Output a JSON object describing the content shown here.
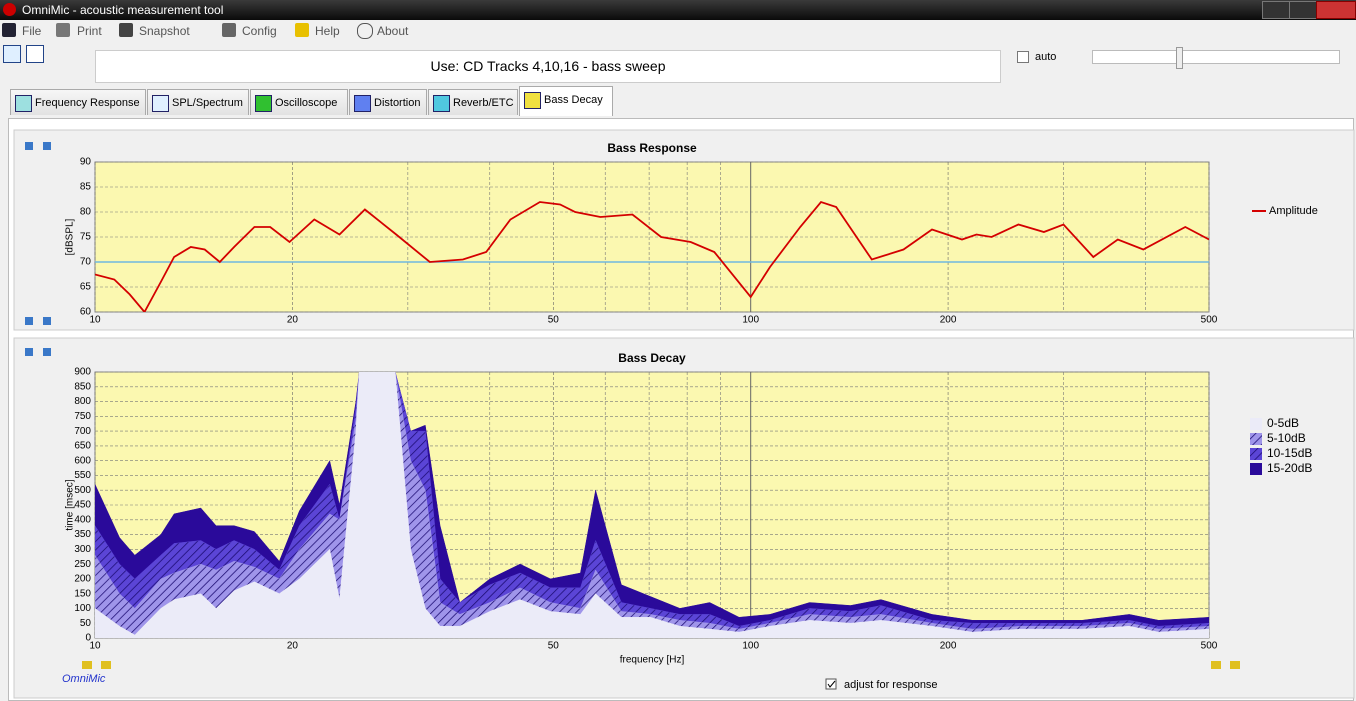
{
  "window": {
    "title": "OmniMic - acoustic measurement tool"
  },
  "menu": [
    "File",
    "Print",
    "Snapshot",
    "Config",
    "Help",
    "About"
  ],
  "toolbar": {
    "message": "Use: CD Tracks 4,10,16 - bass sweep",
    "auto": "auto"
  },
  "tabs": [
    "Frequency Response",
    "SPL/Spectrum",
    "Oscilloscope",
    "Distortion",
    "Reverb/ETC",
    "Bass Decay"
  ],
  "active_tab": 5,
  "footer": {
    "logo": "OmniMic",
    "checkbox": "adjust for response"
  },
  "chart_data": [
    {
      "type": "line",
      "title": "Bass Response",
      "y_label": "[dBSPL]",
      "log_x": true,
      "grid": true,
      "xlim": [
        10,
        500
      ],
      "xticks": [
        10,
        20,
        50,
        100,
        200,
        500
      ],
      "xminor": [
        30,
        40,
        60,
        70,
        80,
        90,
        300,
        400
      ],
      "ylim": [
        60,
        90
      ],
      "yticks": [
        60,
        65,
        70,
        75,
        80,
        85,
        90
      ],
      "reference_line": 70,
      "reference_color": "#6fb7e0",
      "x": [
        10,
        10.7,
        11.3,
        11.9,
        12.6,
        13.2,
        14.0,
        14.7,
        15.5,
        16.3,
        17.5,
        18.5,
        19.8,
        21.6,
        23.6,
        25.8,
        28.8,
        32.4,
        36.4,
        39.5,
        43,
        47.7,
        51.2,
        54,
        59,
        66,
        73,
        81,
        88,
        100,
        107,
        119,
        128,
        135,
        153,
        171,
        189,
        210,
        221,
        233,
        256,
        280,
        300,
        333,
        363,
        397,
        460,
        500
      ],
      "series": [
        {
          "name": "Amplitude",
          "color": "#d40000",
          "values": [
            67.5,
            66.5,
            63.5,
            60,
            66,
            71,
            73,
            72.5,
            70,
            73,
            77,
            77,
            74,
            78.5,
            75.5,
            80.5,
            75.5,
            70,
            70.5,
            72,
            78.5,
            82,
            81.5,
            80,
            79,
            79.5,
            75,
            74,
            72,
            63,
            69,
            77,
            82,
            81,
            70.5,
            72.5,
            76.5,
            74.5,
            75.5,
            75,
            77.5,
            76,
            77.5,
            71,
            74.5,
            72.5,
            77,
            74.5
          ]
        }
      ]
    },
    {
      "type": "area",
      "title": "Bass Decay",
      "x_label": "frequency [Hz]",
      "y_label": "time [msec]",
      "log_x": true,
      "grid": true,
      "xlim": [
        10,
        500
      ],
      "xticks": [
        10,
        20,
        50,
        100,
        200,
        500
      ],
      "xminor": [
        30,
        40,
        60,
        70,
        80,
        90,
        300,
        400
      ],
      "ylim": [
        0,
        900
      ],
      "yticks": [
        0,
        50,
        100,
        150,
        200,
        250,
        300,
        350,
        400,
        450,
        500,
        550,
        600,
        650,
        700,
        750,
        800,
        850,
        900
      ],
      "x": [
        10,
        10.9,
        11.5,
        12.6,
        13.2,
        14.5,
        15.3,
        16.3,
        17.5,
        19.1,
        20.5,
        22.8,
        23.6,
        25,
        25.3,
        28.7,
        30.3,
        31.9,
        33.6,
        36,
        40,
        44.5,
        49.5,
        55,
        58,
        63.5,
        70.4,
        78,
        86.6,
        96,
        107,
        123,
        142,
        158,
        189,
        218,
        259,
        320,
        378,
        419,
        500
      ],
      "series": [
        {
          "name": "0-5dB",
          "color": "#ebebf8",
          "hatched": false,
          "values": [
            100,
            40,
            10,
            100,
            130,
            150,
            100,
            160,
            190,
            150,
            200,
            300,
            130,
            700,
            900,
            900,
            300,
            100,
            40,
            40,
            90,
            130,
            90,
            80,
            150,
            70,
            70,
            40,
            30,
            20,
            40,
            60,
            50,
            60,
            40,
            20,
            30,
            30,
            40,
            20,
            30
          ]
        },
        {
          "name": "5-10dB",
          "color": "#9f95ea",
          "hatched": true,
          "values": [
            280,
            150,
            100,
            200,
            220,
            250,
            230,
            260,
            240,
            200,
            300,
            420,
            400,
            740,
            900,
            900,
            600,
            500,
            120,
            80,
            120,
            170,
            120,
            100,
            230,
            90,
            80,
            60,
            50,
            30,
            50,
            80,
            70,
            80,
            50,
            30,
            40,
            40,
            50,
            30,
            40
          ]
        },
        {
          "name": "10-15dB",
          "color": "#5b45d6",
          "hatched": true,
          "values": [
            380,
            250,
            200,
            280,
            320,
            330,
            300,
            330,
            300,
            230,
            380,
            520,
            400,
            780,
            900,
            900,
            700,
            700,
            200,
            120,
            180,
            220,
            170,
            170,
            330,
            120,
            100,
            80,
            80,
            40,
            60,
            100,
            90,
            110,
            60,
            50,
            50,
            50,
            60,
            40,
            50
          ]
        },
        {
          "name": "15-20dB",
          "color": "#2a0a9a",
          "hatched": false,
          "values": [
            520,
            340,
            280,
            350,
            420,
            440,
            380,
            380,
            360,
            260,
            430,
            600,
            450,
            800,
            900,
            900,
            700,
            720,
            380,
            120,
            200,
            250,
            200,
            220,
            500,
            180,
            140,
            100,
            120,
            70,
            80,
            120,
            110,
            130,
            80,
            60,
            60,
            60,
            80,
            60,
            70
          ]
        }
      ]
    }
  ]
}
